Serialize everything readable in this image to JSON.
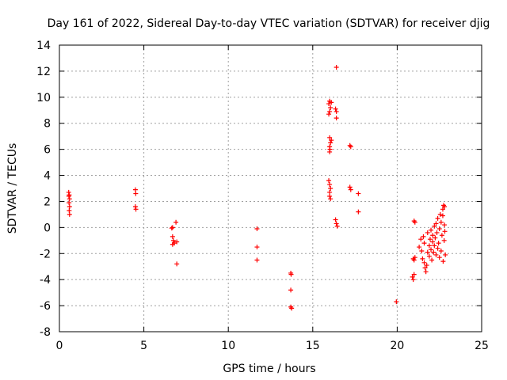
{
  "chart_data": {
    "type": "scatter",
    "title": "Day 161 of 2022, Sidereal Day-to-day VTEC variation (SDTVAR) for receiver djig",
    "xlabel": "GPS time / hours",
    "ylabel": "SDTVAR / TECUs",
    "xlim": [
      0,
      25
    ],
    "ylim": [
      -8,
      14
    ],
    "xticks": [
      "0",
      "5",
      "10",
      "15",
      "20",
      "25"
    ],
    "yticks": [
      "-8",
      "-6",
      "-4",
      "-2",
      "0",
      "2",
      "4",
      "6",
      "8",
      "10",
      "12",
      "14"
    ],
    "grid": true,
    "marker": "+",
    "color": "#ff0000",
    "series": [
      {
        "points": [
          [
            0.55,
            2.7
          ],
          [
            0.58,
            2.5
          ],
          [
            0.6,
            2.2
          ],
          [
            0.57,
            1.9
          ],
          [
            0.6,
            1.6
          ],
          [
            0.58,
            1.3
          ],
          [
            0.6,
            1.0
          ],
          [
            0.56,
            2.4
          ],
          [
            4.5,
            2.9
          ],
          [
            4.52,
            2.6
          ],
          [
            4.5,
            1.6
          ],
          [
            4.53,
            1.4
          ],
          [
            6.65,
            -0.05
          ],
          [
            6.7,
            0.0
          ],
          [
            6.7,
            -0.7
          ],
          [
            6.75,
            -1.0
          ],
          [
            6.7,
            -1.3
          ],
          [
            6.8,
            -1.2
          ],
          [
            6.9,
            0.4
          ],
          [
            6.95,
            -1.1
          ],
          [
            6.95,
            -2.8
          ],
          [
            11.7,
            -0.1
          ],
          [
            11.7,
            -1.5
          ],
          [
            11.7,
            -2.5
          ],
          [
            13.7,
            -3.5
          ],
          [
            13.72,
            -3.6
          ],
          [
            13.7,
            -4.8
          ],
          [
            13.7,
            -6.1
          ],
          [
            13.75,
            -6.2
          ],
          [
            15.95,
            9.5
          ],
          [
            16.0,
            9.7
          ],
          [
            16.05,
            9.2
          ],
          [
            16.0,
            8.9
          ],
          [
            16.1,
            9.6
          ],
          [
            15.95,
            8.7
          ],
          [
            16.0,
            6.9
          ],
          [
            16.05,
            6.5
          ],
          [
            16.0,
            6.2
          ],
          [
            16.02,
            6.0
          ],
          [
            16.0,
            5.8
          ],
          [
            16.1,
            6.7
          ],
          [
            15.95,
            3.6
          ],
          [
            16.0,
            3.3
          ],
          [
            16.05,
            3.0
          ],
          [
            16.0,
            2.7
          ],
          [
            16.0,
            2.4
          ],
          [
            16.05,
            2.2
          ],
          [
            16.4,
            12.3
          ],
          [
            16.35,
            9.1
          ],
          [
            16.4,
            8.9
          ],
          [
            16.4,
            8.4
          ],
          [
            16.35,
            0.6
          ],
          [
            16.4,
            0.3
          ],
          [
            16.45,
            0.1
          ],
          [
            17.2,
            6.3
          ],
          [
            17.25,
            6.2
          ],
          [
            17.2,
            3.1
          ],
          [
            17.25,
            2.9
          ],
          [
            17.7,
            2.6
          ],
          [
            17.7,
            1.2
          ],
          [
            19.95,
            -5.7
          ],
          [
            20.9,
            -3.8
          ],
          [
            20.95,
            -4.0
          ],
          [
            21.0,
            -3.6
          ],
          [
            20.95,
            -2.4
          ],
          [
            21.0,
            -2.5
          ],
          [
            21.05,
            -2.3
          ],
          [
            21.0,
            0.5
          ],
          [
            21.05,
            0.4
          ],
          [
            21.3,
            -1.5
          ],
          [
            21.4,
            -0.9
          ],
          [
            21.45,
            -1.8
          ],
          [
            21.5,
            -2.4
          ],
          [
            21.55,
            -0.7
          ],
          [
            21.6,
            -1.2
          ],
          [
            21.6,
            -2.7
          ],
          [
            21.65,
            -3.1
          ],
          [
            21.7,
            -3.4
          ],
          [
            21.75,
            -2.9
          ],
          [
            21.8,
            -1.9
          ],
          [
            21.8,
            -0.4
          ],
          [
            21.9,
            -1.4
          ],
          [
            21.9,
            -2.2
          ],
          [
            21.95,
            -0.9
          ],
          [
            22.0,
            -1.7
          ],
          [
            22.0,
            -0.2
          ],
          [
            22.05,
            -2.5
          ],
          [
            22.1,
            -1.1
          ],
          [
            22.1,
            -0.6
          ],
          [
            22.15,
            -1.9
          ],
          [
            22.2,
            0.1
          ],
          [
            22.2,
            -1.4
          ],
          [
            22.25,
            -0.8
          ],
          [
            22.3,
            -2.1
          ],
          [
            22.3,
            0.3
          ],
          [
            22.35,
            -0.4
          ],
          [
            22.4,
            -1.6
          ],
          [
            22.4,
            0.7
          ],
          [
            22.45,
            -1.2
          ],
          [
            22.5,
            -0.1
          ],
          [
            22.5,
            -2.3
          ],
          [
            22.55,
            1.0
          ],
          [
            22.6,
            0.4
          ],
          [
            22.6,
            -1.8
          ],
          [
            22.65,
            -0.6
          ],
          [
            22.7,
            1.4
          ],
          [
            22.7,
            0.9
          ],
          [
            22.72,
            -2.6
          ],
          [
            22.75,
            1.7
          ],
          [
            22.78,
            -1.0
          ],
          [
            22.8,
            0.2
          ],
          [
            22.8,
            1.6
          ],
          [
            22.82,
            -0.3
          ],
          [
            22.85,
            -2.1
          ]
        ]
      }
    ]
  }
}
